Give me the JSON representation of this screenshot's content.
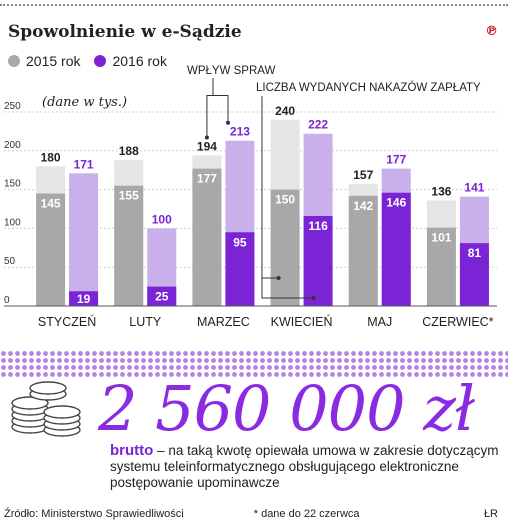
{
  "header": {
    "title": "Spowolnienie w e-Sądzie",
    "brand": "℗",
    "unit_note": "(dane w tys.)"
  },
  "legend": [
    {
      "name": "2015 rok",
      "color": "#a8a8a8"
    },
    {
      "name": "2016 rok",
      "color": "#7a24d6"
    }
  ],
  "chart_data": {
    "type": "bar",
    "categories": [
      "STYCZEŃ",
      "LUTY",
      "MARZEC",
      "KWIECIEŃ",
      "MAJ",
      "CZERWIEC*"
    ],
    "series": [
      {
        "name": "2015 rok",
        "values": [
          180,
          188,
          194,
          240,
          157,
          136
        ],
        "issued": [
          145,
          155,
          177,
          150,
          142,
          101
        ]
      },
      {
        "name": "2016 rok",
        "values": [
          171,
          100,
          213,
          222,
          177,
          141
        ],
        "issued": [
          19,
          25,
          95,
          116,
          146,
          81
        ]
      }
    ],
    "ylim": [
      0,
      250
    ],
    "yticks": [
      0,
      50,
      100,
      150,
      200,
      250
    ],
    "annotations": [
      "WPŁYW SPRAW",
      "LICZBA WYDANYCH NAKAZÓW ZAPŁATY"
    ],
    "colors": {
      "light_2015": "#e5e5e5",
      "dark_2015": "#a8a8a8",
      "light_2016": "#c9b0ea",
      "dark_2016": "#7a24d6",
      "label_2015": "#222222",
      "label_2016": "#7a24d6"
    }
  },
  "highlight": {
    "amount": "2 560 000 zł",
    "lead": "brutto",
    "text": " – na taką kwotę opiewała umowa w zakresie dotyczącym systemu teleinformatycznego obsługującego elektroniczne postępowanie upominawcze"
  },
  "footer": {
    "source": "Źródło: Ministerstwo Sprawiedliwości",
    "footnote": "* dane do 22 czerwca",
    "author": "ŁR"
  }
}
